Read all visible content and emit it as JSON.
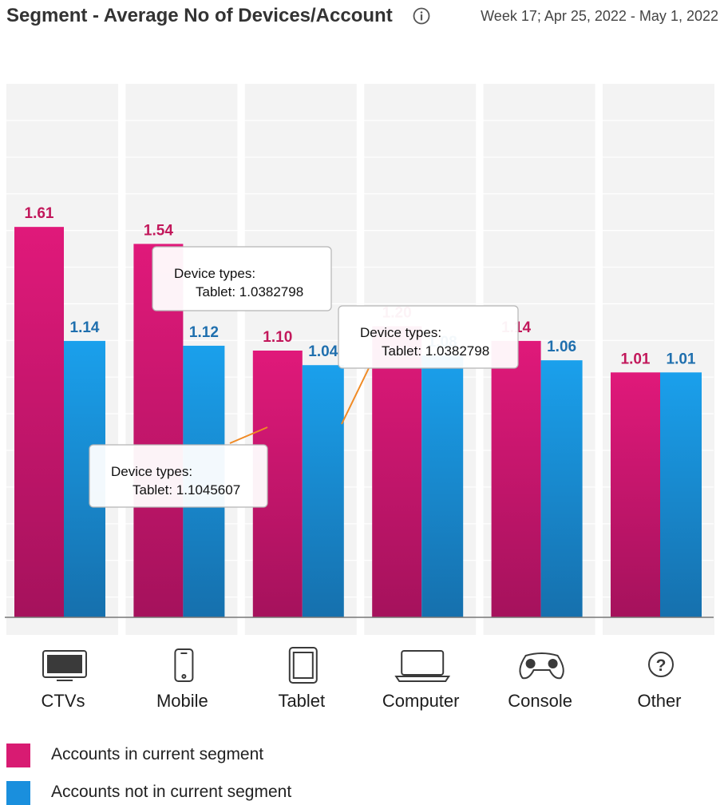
{
  "header": {
    "title": "Segment - Average No of Devices/Account",
    "date_range": "Week 17; Apr 25, 2022 - May 1, 2022"
  },
  "colors": {
    "current_segment": "#d81b72",
    "not_in_segment": "#1a8fdd",
    "current_label": "#c2185b",
    "not_label": "#1f6fae",
    "column_bg": "#f3f3f3"
  },
  "chart_data": {
    "type": "bar",
    "categories": [
      "CTVs",
      "Mobile",
      "Tablet",
      "Computer",
      "Console",
      "Other"
    ],
    "category_icons": [
      "tv-icon",
      "mobile-phone-icon",
      "tablet-icon",
      "laptop-icon",
      "gamepad-icon",
      "question-mark-icon"
    ],
    "series": [
      {
        "name": "Accounts in current segment",
        "values": [
          1.61,
          1.54,
          1.1,
          1.2,
          1.14,
          1.01
        ],
        "labels": [
          "1.61",
          "1.54",
          "1.10",
          "1.20",
          "1.14",
          "1.01"
        ]
      },
      {
        "name": "Accounts not in current segment",
        "values": [
          1.14,
          1.12,
          1.04,
          1.08,
          1.06,
          1.01
        ],
        "labels": [
          "1.14",
          "1.12",
          "1.04",
          "1.08",
          "1.06",
          "1.01"
        ]
      }
    ],
    "ylim": [
      0,
      2.2
    ],
    "grid": true,
    "legend_position": "bottom-left"
  },
  "tooltips": [
    {
      "heading": "Device types:",
      "value": "Tablet: 1.0382798"
    },
    {
      "heading": "Device types:",
      "value": "Tablet: 1.0382798"
    },
    {
      "heading": "Device types:",
      "value": "Tablet: 1.1045607"
    }
  ],
  "legend": {
    "current": "Accounts in current segment",
    "not_current": "Accounts not in current segment"
  }
}
